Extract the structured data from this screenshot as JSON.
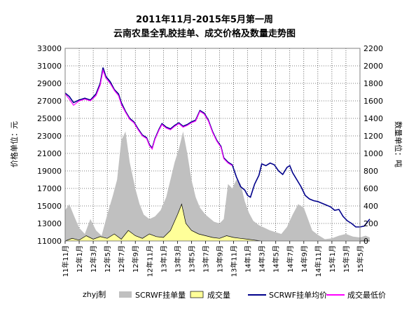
{
  "chart_data": {
    "type": "line",
    "title": "2011年11月-2015年5月第一周",
    "subtitle": "云南农垦全乳胶挂单、成交价格及数量走势图",
    "ylabel_left": "价格单位：元",
    "ylabel_right": "数量单位：吨",
    "ylim_left": [
      11000,
      33000
    ],
    "ylim_right": [
      0,
      2200
    ],
    "yticks_left": [
      "33000",
      "31000",
      "29000",
      "27000",
      "25000",
      "23000",
      "21000",
      "19000",
      "17000",
      "15000",
      "13000",
      "11000"
    ],
    "yticks_right": [
      "2200",
      "2000",
      "1800",
      "1600",
      "1400",
      "1200",
      "1000",
      "800",
      "600",
      "400",
      "200",
      "0"
    ],
    "x_ticks": [
      "11年11月",
      "12年1月",
      "12年3月",
      "12年5月",
      "12年7月",
      "12年9月",
      "12年11月",
      "13年1月",
      "13年3月",
      "13年5月",
      "13年7月",
      "13年9月",
      "13年11月",
      "14年1月",
      "14年3月",
      "14年5月",
      "14年7月",
      "14年9月",
      "14年11月",
      "15年1月",
      "15年3月",
      "15年5月"
    ],
    "grid": true,
    "legend_position": "bottom",
    "credit": "zhyj制",
    "series": [
      {
        "name": "SCRWF挂单量",
        "kind": "area",
        "axis": "right",
        "color": "#c0c0c0",
        "values": [
          [
            0,
            350
          ],
          [
            0.3,
            420
          ],
          [
            0.6,
            300
          ],
          [
            1,
            150
          ],
          [
            1.4,
            80
          ],
          [
            1.8,
            250
          ],
          [
            2.2,
            120
          ],
          [
            2.6,
            60
          ],
          [
            3,
            300
          ],
          [
            3.4,
            520
          ],
          [
            3.7,
            700
          ],
          [
            4,
            1150
          ],
          [
            4.3,
            1250
          ],
          [
            4.6,
            900
          ],
          [
            5,
            600
          ],
          [
            5.3,
            420
          ],
          [
            5.6,
            300
          ],
          [
            6,
            250
          ],
          [
            6.4,
            280
          ],
          [
            6.8,
            350
          ],
          [
            7.2,
            500
          ],
          [
            7.5,
            700
          ],
          [
            7.8,
            900
          ],
          [
            8.1,
            1050
          ],
          [
            8.4,
            1250
          ],
          [
            8.7,
            1000
          ],
          [
            9,
            700
          ],
          [
            9.3,
            500
          ],
          [
            9.6,
            380
          ],
          [
            10,
            300
          ],
          [
            10.3,
            260
          ],
          [
            10.6,
            220
          ],
          [
            11,
            200
          ],
          [
            11.3,
            250
          ],
          [
            11.6,
            650
          ],
          [
            11.9,
            600
          ],
          [
            12.2,
            700
          ],
          [
            12.5,
            650
          ],
          [
            12.8,
            450
          ],
          [
            13.1,
            320
          ],
          [
            13.4,
            230
          ],
          [
            13.8,
            180
          ],
          [
            14.2,
            150
          ],
          [
            14.6,
            120
          ],
          [
            15,
            100
          ],
          [
            15.4,
            80
          ],
          [
            15.8,
            160
          ],
          [
            16.2,
            300
          ],
          [
            16.6,
            420
          ],
          [
            17,
            380
          ],
          [
            17.3,
            250
          ],
          [
            17.6,
            120
          ],
          [
            18,
            70
          ],
          [
            18.5,
            20
          ],
          [
            19,
            30
          ],
          [
            19.5,
            60
          ],
          [
            20,
            80
          ],
          [
            20.5,
            50
          ],
          [
            21,
            40
          ],
          [
            21.4,
            60
          ],
          [
            21.7,
            40
          ]
        ]
      },
      {
        "name": "成交量",
        "kind": "area",
        "axis": "right",
        "color": "#ffff99",
        "values": [
          [
            0,
            0
          ],
          [
            0.5,
            30
          ],
          [
            1,
            10
          ],
          [
            1.5,
            60
          ],
          [
            2,
            20
          ],
          [
            2.5,
            50
          ],
          [
            3,
            30
          ],
          [
            3.5,
            80
          ],
          [
            4,
            20
          ],
          [
            4.5,
            120
          ],
          [
            5,
            60
          ],
          [
            5.5,
            30
          ],
          [
            6,
            80
          ],
          [
            6.5,
            50
          ],
          [
            7,
            40
          ],
          [
            7.5,
            120
          ],
          [
            8,
            300
          ],
          [
            8.3,
            420
          ],
          [
            8.6,
            200
          ],
          [
            9,
            120
          ],
          [
            9.5,
            80
          ],
          [
            10,
            60
          ],
          [
            10.5,
            40
          ],
          [
            11,
            30
          ],
          [
            11.5,
            60
          ],
          [
            12,
            40
          ],
          [
            12.5,
            30
          ],
          [
            13,
            20
          ],
          [
            13.5,
            10
          ],
          [
            14,
            0
          ],
          [
            21.7,
            0
          ]
        ]
      },
      {
        "name": "SCRWF挂单均价",
        "kind": "line",
        "axis": "left",
        "color": "#00008b",
        "values": [
          [
            0,
            27900
          ],
          [
            0.3,
            27500
          ],
          [
            0.6,
            26800
          ],
          [
            1,
            27100
          ],
          [
            1.4,
            27300
          ],
          [
            1.8,
            27100
          ],
          [
            2.2,
            27800
          ],
          [
            2.5,
            29000
          ],
          [
            2.7,
            30800
          ],
          [
            2.9,
            29800
          ],
          [
            3.2,
            29200
          ],
          [
            3.5,
            28300
          ],
          [
            3.8,
            27800
          ],
          [
            4,
            26800
          ],
          [
            4.3,
            25800
          ],
          [
            4.6,
            25000
          ],
          [
            4.9,
            24600
          ],
          [
            5.2,
            23800
          ],
          [
            5.5,
            23100
          ],
          [
            5.8,
            22800
          ],
          [
            6,
            22000
          ],
          [
            6.2,
            21600
          ],
          [
            6.4,
            22700
          ],
          [
            6.7,
            23800
          ],
          [
            6.9,
            24400
          ],
          [
            7.2,
            24000
          ],
          [
            7.5,
            23800
          ],
          [
            7.8,
            24200
          ],
          [
            8.1,
            24500
          ],
          [
            8.4,
            24100
          ],
          [
            8.7,
            24300
          ],
          [
            9,
            24600
          ],
          [
            9.3,
            24800
          ],
          [
            9.6,
            25900
          ],
          [
            9.9,
            25600
          ],
          [
            10.2,
            24800
          ],
          [
            10.5,
            23500
          ],
          [
            10.8,
            22500
          ],
          [
            11.1,
            21800
          ],
          [
            11.3,
            20500
          ],
          [
            11.6,
            20000
          ],
          [
            11.9,
            19700
          ],
          [
            12.2,
            18300
          ],
          [
            12.5,
            17200
          ],
          [
            12.8,
            16800
          ],
          [
            13,
            16200
          ],
          [
            13.2,
            16000
          ],
          [
            13.5,
            17500
          ],
          [
            13.8,
            18500
          ],
          [
            14,
            19800
          ],
          [
            14.3,
            19600
          ],
          [
            14.6,
            19900
          ],
          [
            14.9,
            19700
          ],
          [
            15.2,
            19000
          ],
          [
            15.5,
            18600
          ],
          [
            15.8,
            19400
          ],
          [
            16,
            19600
          ],
          [
            16.2,
            18800
          ],
          [
            16.5,
            18000
          ],
          [
            16.8,
            17200
          ],
          [
            17.1,
            16200
          ],
          [
            17.4,
            15800
          ],
          [
            17.7,
            15600
          ],
          [
            18,
            15500
          ],
          [
            18.3,
            15300
          ],
          [
            18.6,
            15100
          ],
          [
            18.9,
            14900
          ],
          [
            19.2,
            14500
          ],
          [
            19.5,
            14600
          ],
          [
            19.8,
            13800
          ],
          [
            20.1,
            13300
          ],
          [
            20.4,
            13000
          ],
          [
            20.7,
            12600
          ],
          [
            21,
            12600
          ],
          [
            21.3,
            12700
          ],
          [
            21.7,
            13500
          ]
        ]
      },
      {
        "name": "成交最低价",
        "kind": "line",
        "axis": "left",
        "color": "#ff00ff",
        "values": [
          [
            0,
            27800
          ],
          [
            0.3,
            27200
          ],
          [
            0.6,
            26500
          ],
          [
            1,
            27000
          ],
          [
            1.4,
            27200
          ],
          [
            1.8,
            27000
          ],
          [
            2.2,
            27600
          ],
          [
            2.5,
            28800
          ],
          [
            2.7,
            30500
          ],
          [
            2.9,
            29600
          ],
          [
            3.2,
            29000
          ],
          [
            3.5,
            28200
          ],
          [
            3.8,
            27600
          ],
          [
            4,
            26600
          ],
          [
            4.3,
            25700
          ],
          [
            4.6,
            24900
          ],
          [
            4.9,
            24500
          ],
          [
            5.2,
            23700
          ],
          [
            5.5,
            23000
          ],
          [
            5.8,
            22700
          ],
          [
            6,
            21900
          ],
          [
            6.2,
            21500
          ],
          [
            6.4,
            22600
          ],
          [
            6.7,
            23700
          ],
          [
            6.9,
            24300
          ],
          [
            7.2,
            23900
          ],
          [
            7.5,
            23700
          ],
          [
            7.8,
            24100
          ],
          [
            8.1,
            24400
          ],
          [
            8.4,
            24000
          ],
          [
            8.7,
            24200
          ],
          [
            9,
            24500
          ],
          [
            9.3,
            24700
          ],
          [
            9.6,
            25800
          ],
          [
            9.9,
            25500
          ],
          [
            10.2,
            24700
          ],
          [
            10.5,
            23400
          ],
          [
            10.8,
            22400
          ],
          [
            11.1,
            21700
          ],
          [
            11.3,
            20400
          ],
          [
            11.6,
            19900
          ],
          [
            11.9,
            19600
          ]
        ]
      }
    ]
  }
}
